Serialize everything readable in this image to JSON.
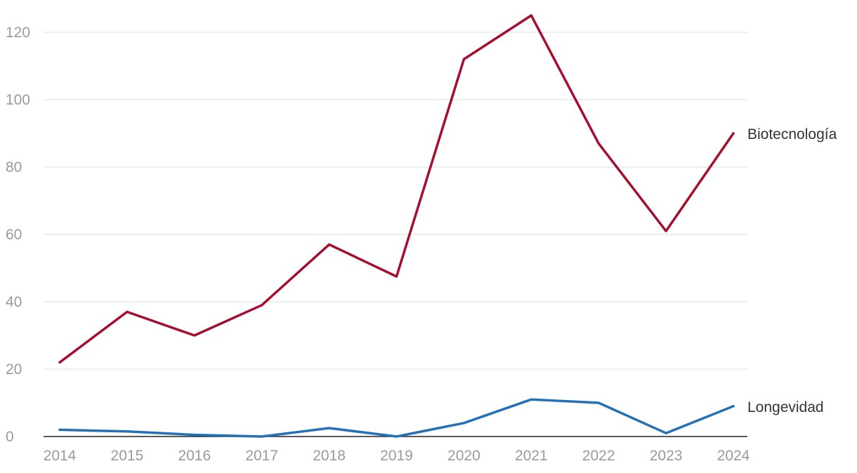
{
  "chart_data": {
    "type": "line",
    "title": "",
    "xlabel": "",
    "ylabel": "",
    "x": [
      "2014",
      "2015",
      "2016",
      "2017",
      "2018",
      "2019",
      "2020",
      "2021",
      "2022",
      "2023",
      "2024"
    ],
    "yticks": [
      "0",
      "20",
      "40",
      "60",
      "80",
      "100",
      "120"
    ],
    "ylim": [
      0,
      125
    ],
    "grid": true,
    "legend": "direct-labels-right",
    "series": [
      {
        "name": "Biotecnología",
        "color": "#a50e2d",
        "values": [
          22,
          37,
          30,
          39,
          57,
          47.5,
          112,
          125,
          87,
          61,
          90
        ]
      },
      {
        "name": "Longevidad",
        "color": "#2471b5",
        "values": [
          2,
          1.5,
          0.5,
          0,
          2.5,
          0,
          4,
          11,
          10,
          1,
          9
        ]
      }
    ]
  }
}
